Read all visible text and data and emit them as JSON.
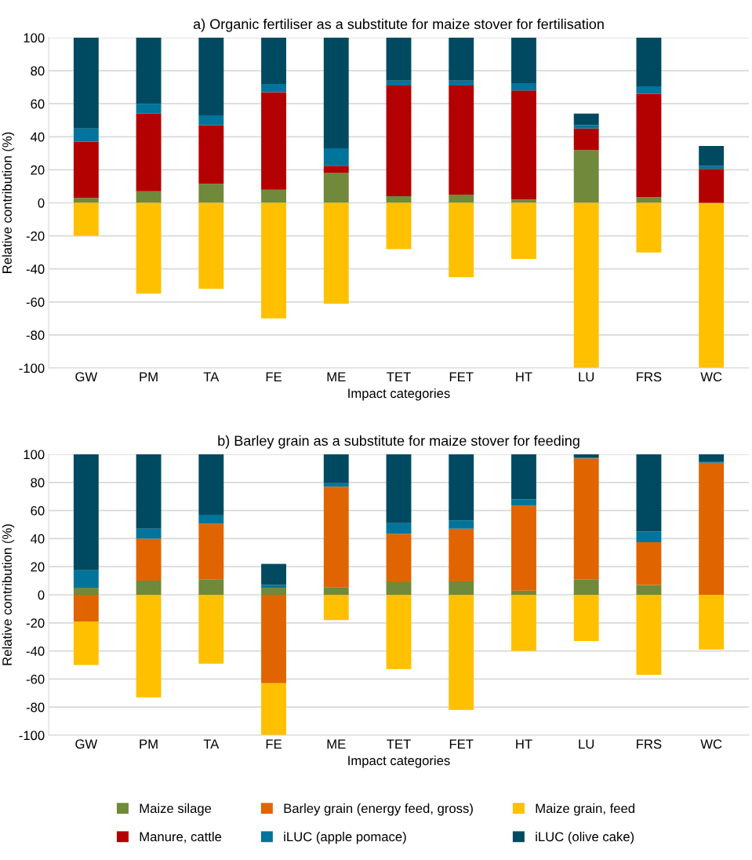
{
  "chart_data": [
    {
      "type": "bar",
      "stacked": true,
      "title": "a) Organic fertiliser as a substitute for maize stover for fertilisation",
      "xlabel": "Impact categories",
      "ylabel": "Relative contribution (%)",
      "categories": [
        "GW",
        "PM",
        "TA",
        "FE",
        "ME",
        "TET",
        "FET",
        "HT",
        "LU",
        "FRS",
        "WC"
      ],
      "ylim": [
        -100,
        100
      ],
      "yticks": [
        -100,
        -80,
        -60,
        -40,
        -20,
        0,
        20,
        40,
        60,
        80,
        100
      ],
      "grid": "y",
      "series": [
        {
          "color": "#70893a",
          "values": [
            3,
            7,
            11.5,
            8,
            18,
            4,
            5,
            2,
            32,
            3.5,
            null
          ]
        },
        {
          "color": "#ffc000",
          "values": [
            -20,
            -55,
            -52,
            -70,
            -61,
            -28,
            -45,
            -34,
            -100,
            -30,
            -100
          ]
        },
        {
          "color": "#b30000",
          "values": [
            34,
            47,
            35.5,
            59,
            4.5,
            67,
            66,
            66,
            13,
            62.5,
            20.5
          ]
        },
        {
          "color": "#00749a",
          "values": [
            8,
            6,
            6,
            5,
            10.5,
            3,
            3,
            4.5,
            2,
            4.5,
            2
          ]
        },
        {
          "color": "#004a61",
          "values": [
            55,
            40,
            47,
            28,
            67,
            26,
            26,
            27.5,
            7,
            29.5,
            12
          ]
        }
      ]
    },
    {
      "type": "bar",
      "stacked": true,
      "title": "b) Barley grain as a substitute for maize stover for feeding",
      "xlabel": "Impact categories",
      "ylabel": "Relative contribution (%)",
      "categories": [
        "GW",
        "PM",
        "TA",
        "FE",
        "ME",
        "TET",
        "FET",
        "HT",
        "LU",
        "FRS",
        "WC"
      ],
      "ylim": [
        -100,
        100
      ],
      "yticks": [
        -100,
        -80,
        -60,
        -40,
        -20,
        0,
        20,
        40,
        60,
        80,
        100
      ],
      "grid": "y",
      "legend": "bottom",
      "series": [
        {
          "name": "Maize silage",
          "color": "#70893a",
          "values": [
            5,
            10,
            11,
            5,
            5.5,
            9,
            9.5,
            3,
            11,
            7,
            null
          ]
        },
        {
          "name": "Barley grain (energy feed, gross)",
          "color": "#e06400",
          "values": [
            -19,
            30,
            39.5,
            -63,
            71.5,
            34.5,
            37.5,
            60.5,
            86,
            30.5,
            94
          ]
        },
        {
          "name": "Maize grain, feed",
          "color": "#ffc000",
          "values": [
            -31,
            -73,
            -49,
            -37,
            -18,
            -53,
            -82,
            -40,
            -33,
            -57,
            -39
          ]
        },
        {
          "name": "Manure, cattle",
          "color": "#b30000",
          "values": [
            null,
            null,
            null,
            null,
            null,
            null,
            null,
            null,
            null,
            null,
            null
          ]
        },
        {
          "name": "iLUC (apple pomace)",
          "color": "#00749a",
          "values": [
            12.5,
            7,
            6.5,
            2,
            2.5,
            7.5,
            6,
            4.5,
            0.5,
            7.5,
            1
          ]
        },
        {
          "name": "iLUC (olive cake)",
          "color": "#004a61",
          "values": [
            82.5,
            53,
            43,
            15,
            20.5,
            49,
            47,
            32,
            2.5,
            55,
            5
          ]
        }
      ]
    }
  ]
}
